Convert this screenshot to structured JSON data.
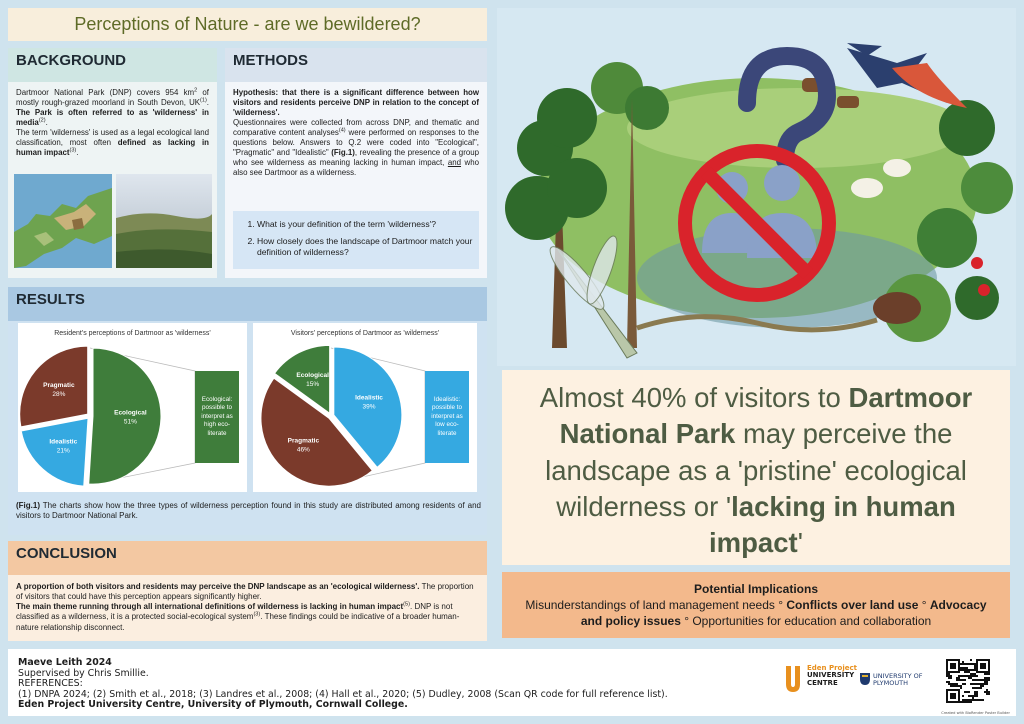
{
  "title": "Perceptions of Nature - are we bewildered?",
  "background": {
    "heading": "BACKGROUND",
    "paragraphs": [
      [
        {
          "text": "Dartmoor National Park (DNP) covers 954 km"
        },
        {
          "text": "2",
          "style": "sup"
        },
        {
          "text": " of mostly rough-grazed moorland in South Devon, UK"
        },
        {
          "text": "(1)",
          "style": "sup"
        },
        {
          "text": ". "
        },
        {
          "text": "The Park is often referred to as 'wilderness' in media",
          "style": "b"
        },
        {
          "text": "(2)",
          "style": "sup"
        },
        {
          "text": "."
        }
      ],
      [
        {
          "text": "The term 'wilderness' is used as a legal ecological land classification, most often "
        },
        {
          "text": "defined as lacking in human impact",
          "style": "b"
        },
        {
          "text": "(3)",
          "style": "sup"
        },
        {
          "text": "."
        }
      ]
    ]
  },
  "methods": {
    "heading": "METHODS",
    "paragraphs": [
      [
        {
          "text": "Hypothesis: that there is a significant difference between how visitors and residents perceive DNP in relation to the concept of 'wilderness'.",
          "style": "b"
        }
      ],
      [
        {
          "text": "Questionnaires were collected from across DNP, and thematic and comparative content analyses"
        },
        {
          "text": "(4)",
          "style": "sup"
        },
        {
          "text": " were performed on responses to the questions below. Answers to Q.2 were coded into \"Ecological\", \"Pragmatic\" and \"Idealistic\" "
        },
        {
          "text": "(Fig.1)",
          "style": "b"
        },
        {
          "text": ", revealing the presence of a group who see wilderness as meaning lacking in human impact, "
        },
        {
          "text": "and",
          "style": "u"
        },
        {
          "text": " who also see Dartmoor as a wilderness."
        }
      ]
    ],
    "questions": [
      "What is your definition of the term 'wilderness'?",
      "How closely does the landscape of Dartmoor match your definition of wilderness?"
    ]
  },
  "results": {
    "heading": "RESULTS",
    "caption": [
      {
        "text": "(Fig.1)",
        "style": "b"
      },
      {
        "text": " The charts show how the three types of wilderness perception found in this study are distributed among residents of and visitors to Dartmoor National Park."
      }
    ]
  },
  "chart_data": [
    {
      "type": "pie",
      "title": "Resident's perceptions of Dartmoor as 'wilderness'",
      "categories": [
        "Ecological",
        "Idealistic",
        "Pragmatic"
      ],
      "values": [
        51,
        21,
        28
      ],
      "value_labels": [
        "51%",
        "21%",
        "28%"
      ],
      "colors": [
        "#3f7d3b",
        "#35a9e1",
        "#7b3a2b"
      ],
      "callout": {
        "text": "Ecological: possible to interpret as high eco-literate",
        "color": "#3f7d3b"
      }
    },
    {
      "type": "pie",
      "title": "Visitors' perceptions of Dartmoor as 'wilderness'",
      "categories": [
        "Idealistic",
        "Pragmatic",
        "Ecological"
      ],
      "values": [
        39,
        46,
        15
      ],
      "value_labels": [
        "39%",
        "46%",
        "15%"
      ],
      "colors": [
        "#35a9e1",
        "#7b3a2b",
        "#3f7d3b"
      ],
      "callout": {
        "text": "Idealistic: possible to interpret as low eco-literate",
        "color": "#35a9e1"
      }
    }
  ],
  "conclusion": {
    "heading": "CONCLUSION",
    "paragraphs": [
      [
        {
          "text": "A proportion of both visitors and residents may perceive the DNP landscape as an 'ecological wilderness'.",
          "style": "b"
        },
        {
          "text": " The proportion of visitors that could have this perception appears significantly higher."
        }
      ],
      [
        {
          "text": "The main theme running through all international definitions of wilderness is lacking in human impact",
          "style": "b"
        },
        {
          "text": "(5)",
          "style": "sup"
        },
        {
          "text": ". DNP is not classified as a wilderness, it is a protected social-ecological system"
        },
        {
          "text": "(3)",
          "style": "sup"
        },
        {
          "text": ". These findings could be indicative of a broader human-nature relationship disconnect."
        }
      ]
    ]
  },
  "statement": [
    {
      "text": "Almost 40% of visitors to "
    },
    {
      "text": "Dartmoor National Park",
      "style": "b"
    },
    {
      "text": " may perceive the landscape as a 'pristine' ecological wilderness or '"
    },
    {
      "text": "lacking in human impact",
      "style": "b"
    },
    {
      "text": "'"
    }
  ],
  "implications": {
    "title": "Potential Implications",
    "text": [
      {
        "text": "Misunderstandings of land management needs ° "
      },
      {
        "text": "Conflicts over land use",
        "style": "b"
      },
      {
        "text": " ° "
      },
      {
        "text": "Advocacy and policy issues",
        "style": "b"
      },
      {
        "text": " ° Opportunities for education and collaboration"
      }
    ]
  },
  "footer": {
    "author": "Maeve Leith 2024",
    "supervisor": "Supervised by Chris Smillie.",
    "references_heading": "REFERENCES:",
    "references": "(1) DNPA 2024; (2) Smith et al., 2018; (3) Landres et al., 2008; (4) Hall et al., 2020; (5) Dudley, 2008 (Scan QR code for full reference list).",
    "institutions": "Eden Project University Centre, University of Plymouth, Cornwall College.",
    "logo1": [
      "Eden Project",
      "UNIVERSITY",
      "CENTRE"
    ],
    "logo2": [
      "UNIVERSITY OF",
      "PLYMOUTH"
    ],
    "credit": "Created with BioRender Poster Builder"
  }
}
